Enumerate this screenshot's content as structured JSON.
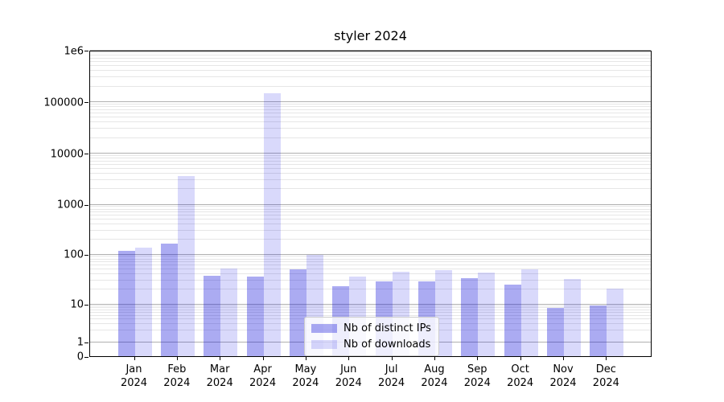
{
  "title": "styler 2024",
  "chart_data": {
    "type": "bar",
    "yscale": "symlog",
    "grid": true,
    "legend_position": "lower center",
    "x_tick_year": "2024",
    "categories": [
      "Jan",
      "Feb",
      "Mar",
      "Apr",
      "May",
      "Jun",
      "Jul",
      "Aug",
      "Sep",
      "Oct",
      "Nov",
      "Dec"
    ],
    "series": [
      {
        "name": "Nb of distinct IPs",
        "color": "rgba(0,0,215,0.33)",
        "values": [
          115,
          160,
          37,
          36,
          49,
          23,
          28,
          28,
          33,
          24,
          8,
          9
        ]
      },
      {
        "name": "Nb of downloads",
        "color": "rgba(0,0,230,0.15)",
        "values": [
          135,
          3500,
          52,
          145000,
          98,
          35,
          45,
          48,
          42,
          50,
          32,
          20
        ]
      }
    ],
    "ylim": [
      0,
      1000000
    ],
    "yticks": [
      {
        "label": "0",
        "value": 0
      },
      {
        "label": "1",
        "value": 1
      },
      {
        "label": "10",
        "value": 10
      },
      {
        "label": "100",
        "value": 100
      },
      {
        "label": "1000",
        "value": 1000
      },
      {
        "label": "10000",
        "value": 10000
      },
      {
        "label": "100000",
        "value": 100000
      },
      {
        "label": "1e6",
        "value": 1000000
      }
    ]
  }
}
